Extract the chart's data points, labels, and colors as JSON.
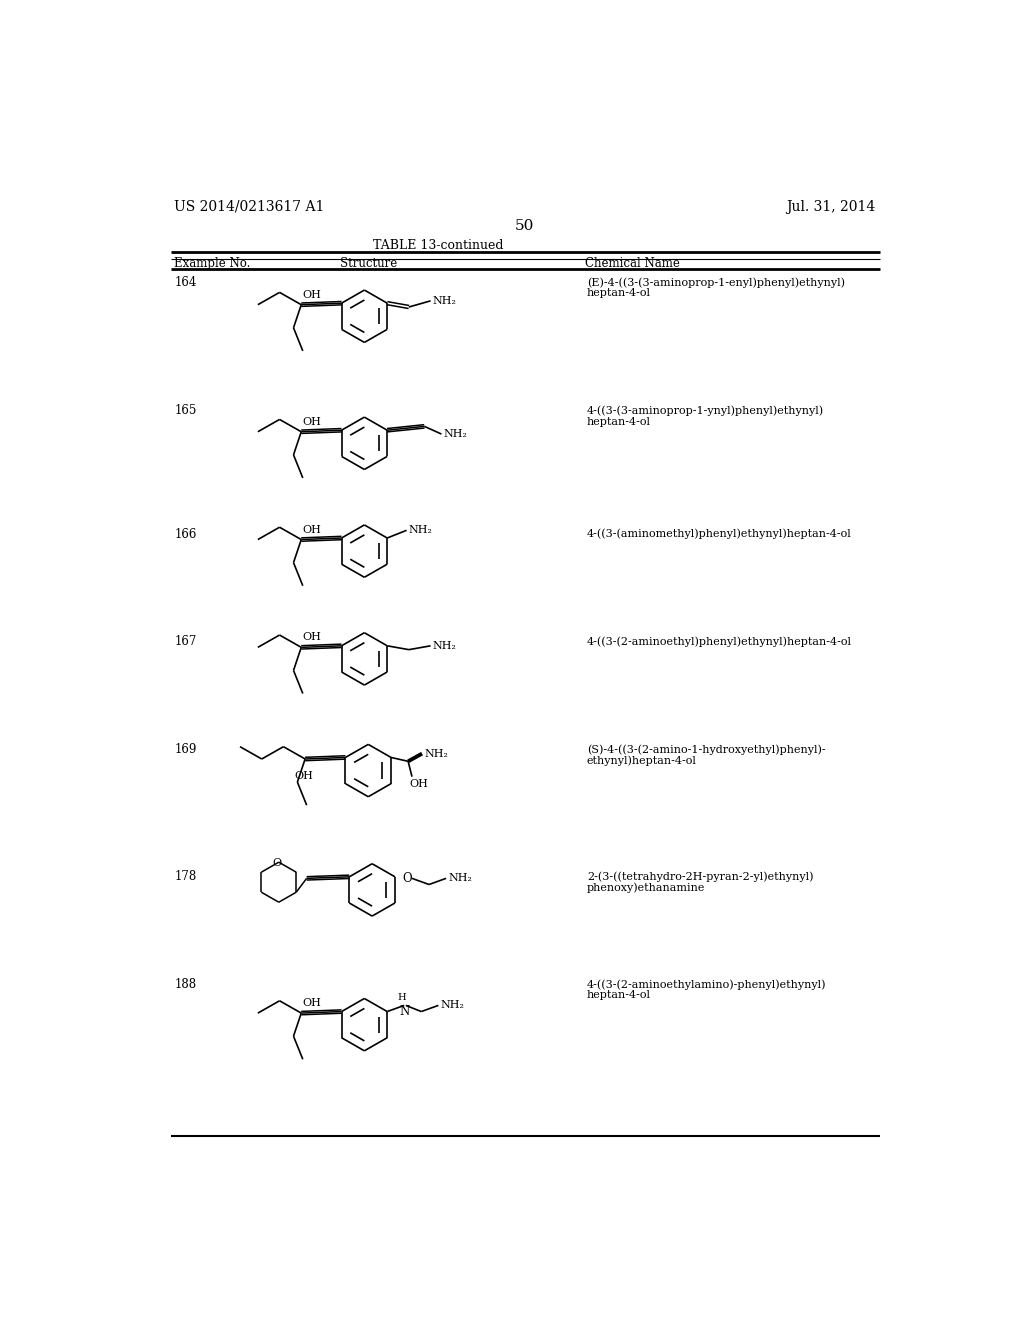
{
  "patent_number": "US 2014/0213617 A1",
  "date": "Jul. 31, 2014",
  "page_number": "50",
  "table_title": "TABLE 13-continued",
  "col_headers": [
    "Example No.",
    "Structure",
    "Chemical Name"
  ],
  "entries": [
    {
      "example": "164",
      "name": "(E)-4-((3-(3-aminoprop-1-enyl)phenyl)ethynyl)\nheptan-4-ol"
    },
    {
      "example": "165",
      "name": "4-((3-(3-aminoprop-1-ynyl)phenyl)ethynyl)\nheptan-4-ol"
    },
    {
      "example": "166",
      "name": "4-((3-(aminomethyl)phenyl)ethynyl)heptan-4-ol"
    },
    {
      "example": "167",
      "name": "4-((3-(2-aminoethyl)phenyl)ethynyl)heptan-4-ol"
    },
    {
      "example": "169",
      "name": "(S)-4-((3-(2-amino-1-hydroxyethyl)phenyl)-\nethynyl)heptan-4-ol"
    },
    {
      "example": "178",
      "name": "2-(3-((tetrahydro-2H-pyran-2-yl)ethynyl)\nphenoxy)ethanamine"
    },
    {
      "example": "188",
      "name": "4-((3-(2-aminoethylamino)-phenyl)ethynyl)\nheptan-4-ol"
    }
  ],
  "bg_color": "#ffffff",
  "text_color": "#000000",
  "line_color": "#000000"
}
